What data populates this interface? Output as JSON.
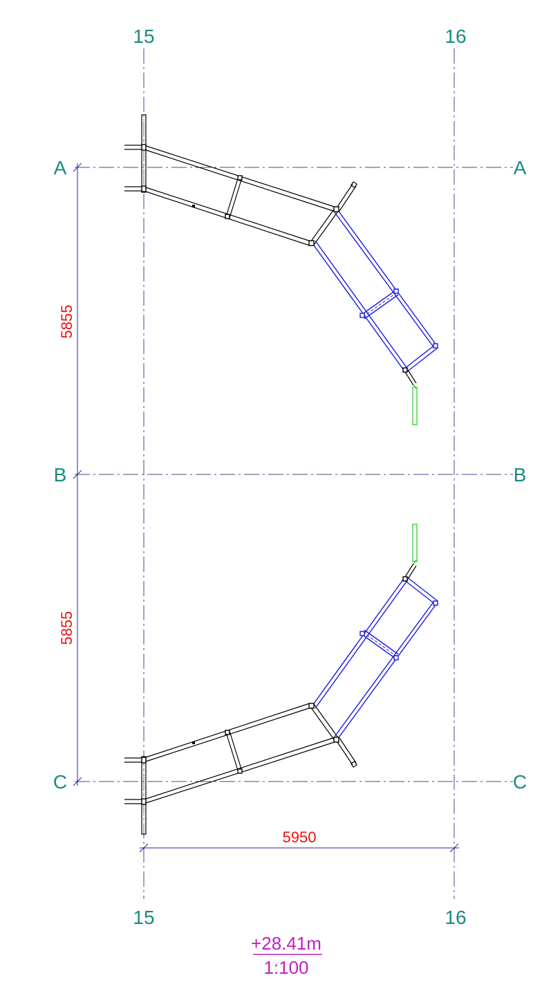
{
  "axes": {
    "vertical": [
      "15",
      "16"
    ],
    "horizontal": [
      "A",
      "B",
      "C"
    ]
  },
  "dimensions": {
    "span_ab": "5855",
    "span_bc": "5855",
    "span_15_16": "5950"
  },
  "level": {
    "elevation": "+28.41m",
    "scale": "1:100"
  },
  "colors": {
    "axis_label": "#1a8a80",
    "dimension_text": "#ee1111",
    "grid_line": "#44448a",
    "black_members": "#000000",
    "blue_members": "#1a1ae0",
    "green_members": "#22cc22",
    "level_text": "#c020c0"
  }
}
